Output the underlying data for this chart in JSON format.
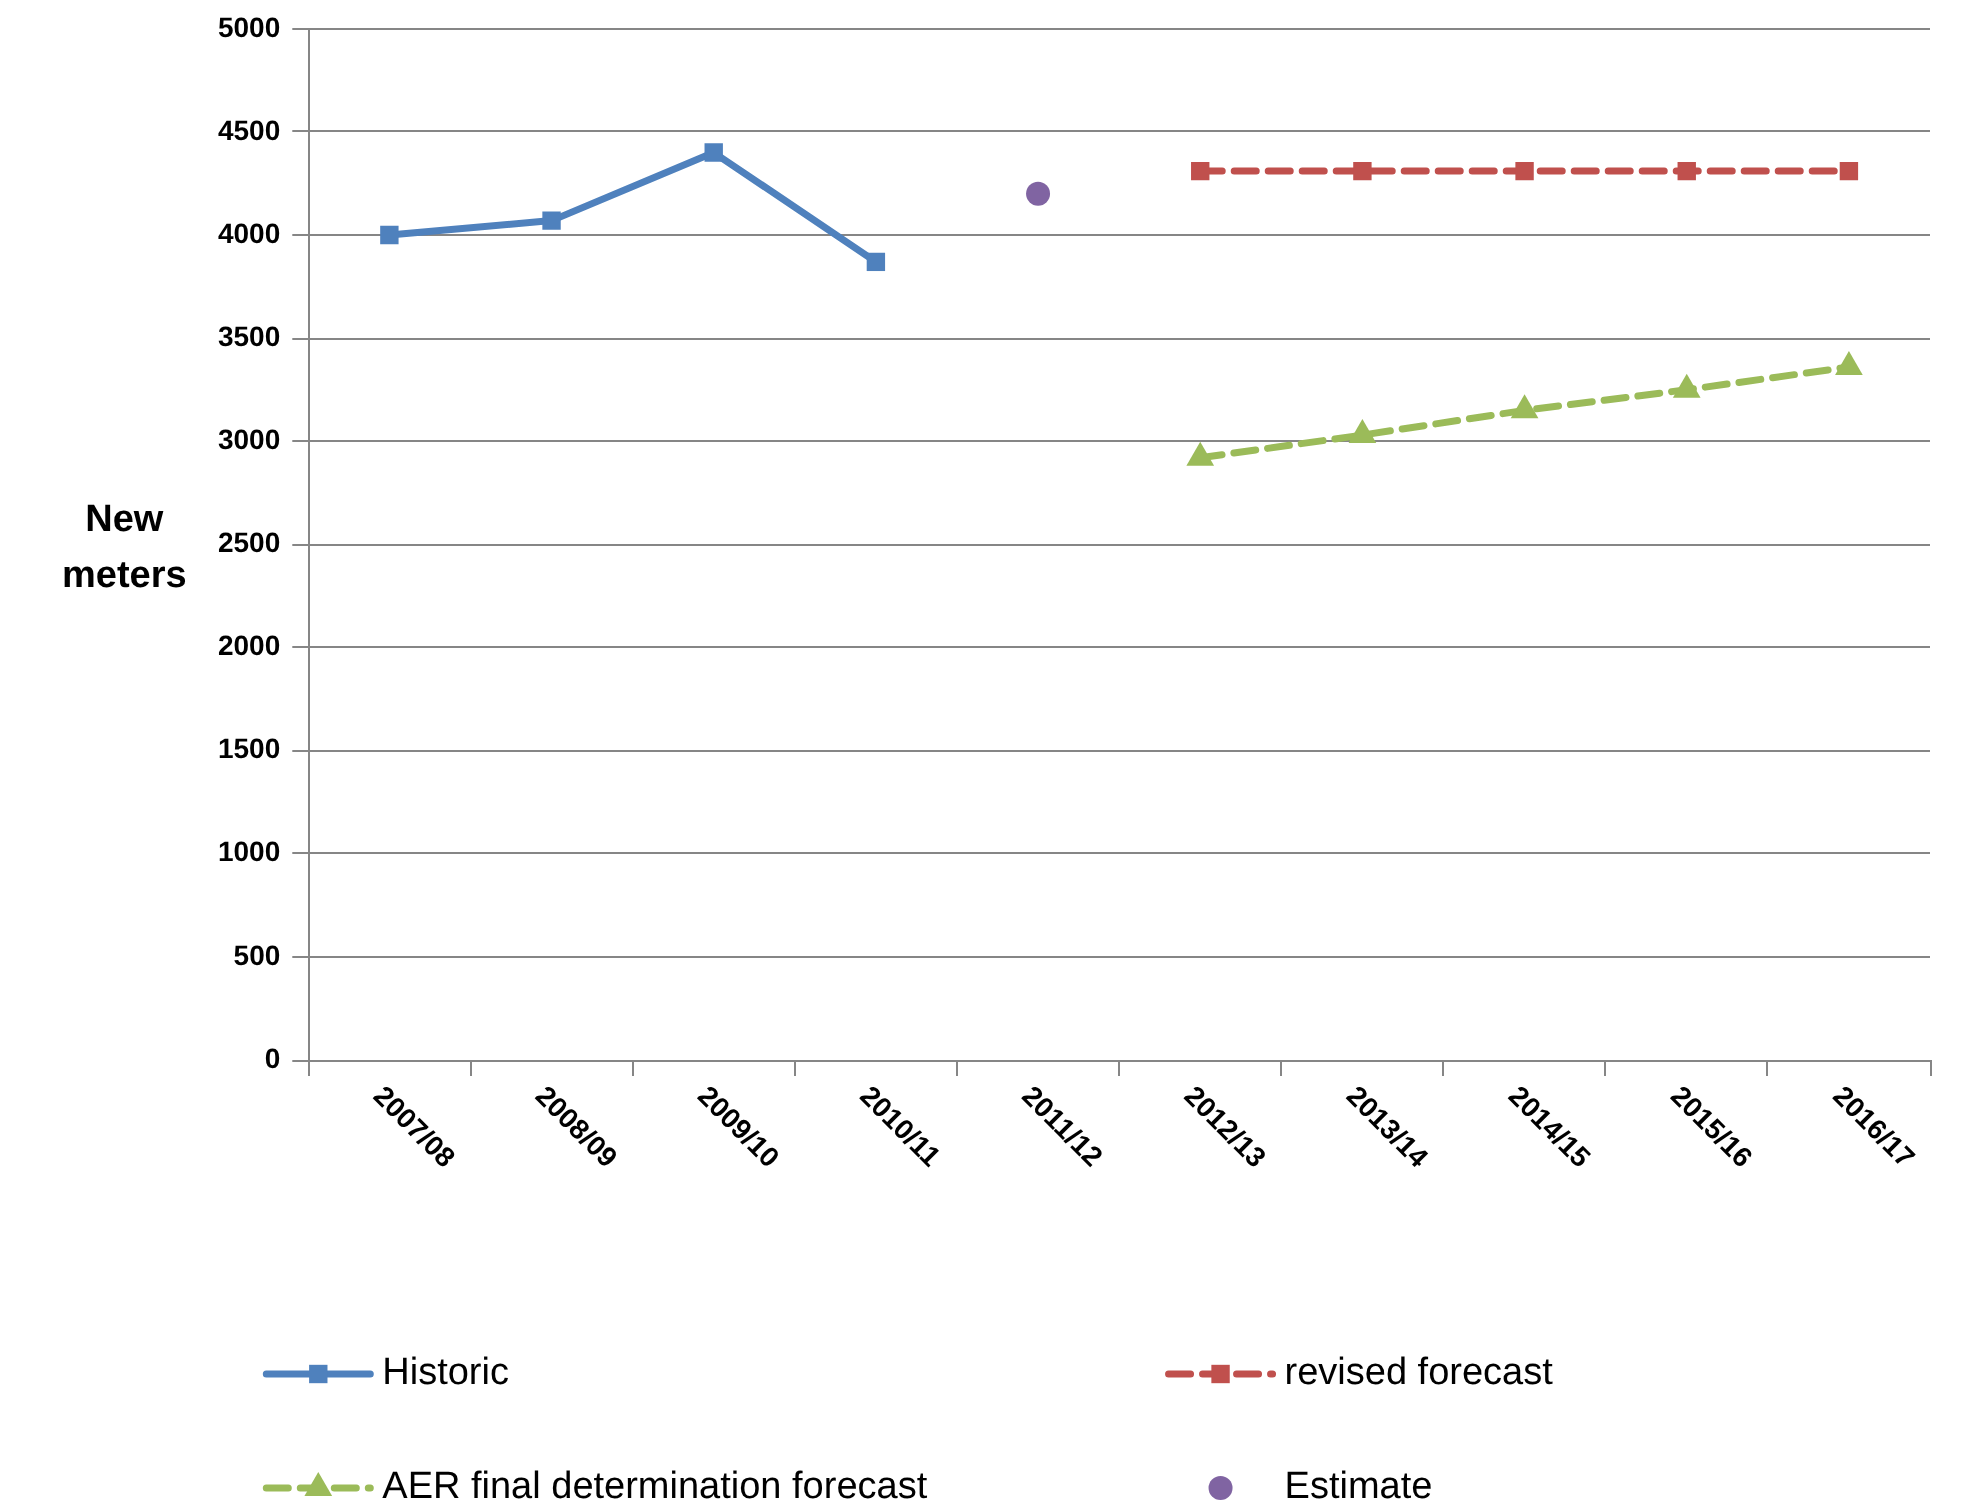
{
  "chart_data": {
    "type": "line",
    "ylabel": "New meters",
    "categories": [
      "2007/08",
      "2008/09",
      "2009/10",
      "2010/11",
      "2011/12",
      "2012/13",
      "2013/14",
      "2014/15",
      "2015/16",
      "2016/17"
    ],
    "ylim": [
      0,
      5000
    ],
    "yticks": [
      0,
      500,
      1000,
      1500,
      2000,
      2500,
      3000,
      3500,
      4000,
      4500,
      5000
    ],
    "grid": "y",
    "legend": "bottom",
    "series": [
      {
        "name": "Historic",
        "color": "#4f81bd",
        "marker": "square",
        "line_style": "solid",
        "values": [
          4000,
          4070,
          4400,
          3870,
          null,
          null,
          null,
          null,
          null,
          null
        ]
      },
      {
        "name": "revised forecast",
        "color": "#c0504d",
        "marker": "square",
        "line_style": "dashed",
        "values": [
          null,
          null,
          null,
          null,
          null,
          4310,
          4310,
          4310,
          4310,
          4310
        ]
      },
      {
        "name": "AER final determination forecast",
        "color": "#9bbb59",
        "marker": "triangle",
        "line_style": "dashed",
        "values": [
          null,
          null,
          null,
          null,
          null,
          2920,
          3030,
          3150,
          3250,
          3360
        ]
      },
      {
        "name": "Estimate",
        "type": "scatter",
        "color": "#8064a2",
        "marker": "circle",
        "values": [
          null,
          null,
          null,
          null,
          4200,
          null,
          null,
          null,
          null,
          null
        ]
      }
    ]
  }
}
